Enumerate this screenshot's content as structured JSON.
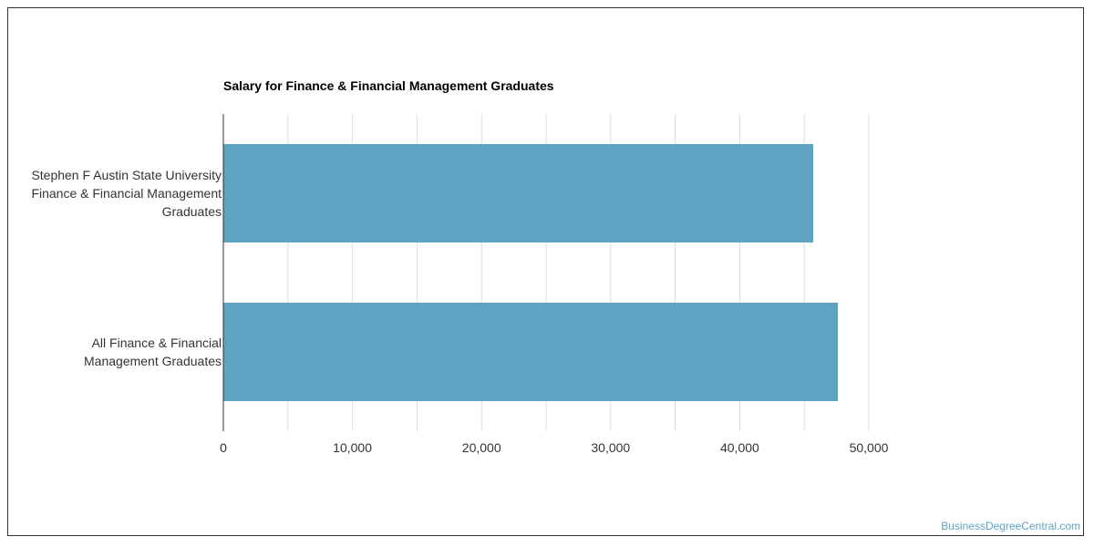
{
  "chart_data": {
    "type": "bar",
    "orientation": "horizontal",
    "title": "Salary for Finance & Financial Management Graduates",
    "categories": [
      [
        "Stephen F Austin State University",
        "Finance & Financial Management",
        "Graduates"
      ],
      [
        "All Finance & Financial",
        "Management Graduates"
      ]
    ],
    "values": [
      45700,
      47600
    ],
    "xlim": [
      0,
      50000
    ],
    "xticks": [
      "0",
      "10,000",
      "20,000",
      "30,000",
      "40,000",
      "50,000"
    ],
    "xtick_values": [
      0,
      10000,
      20000,
      30000,
      40000,
      50000
    ],
    "minor_gridlines": [
      5000,
      15000,
      25000,
      35000,
      45000
    ],
    "grid": true,
    "bar_color": "#5ea3c1",
    "gridline_color": "#dddddd",
    "axis_color": "#333333"
  },
  "watermark": {
    "text": "BusinessDegreeCentral.com",
    "color": "#5ea3c1"
  }
}
